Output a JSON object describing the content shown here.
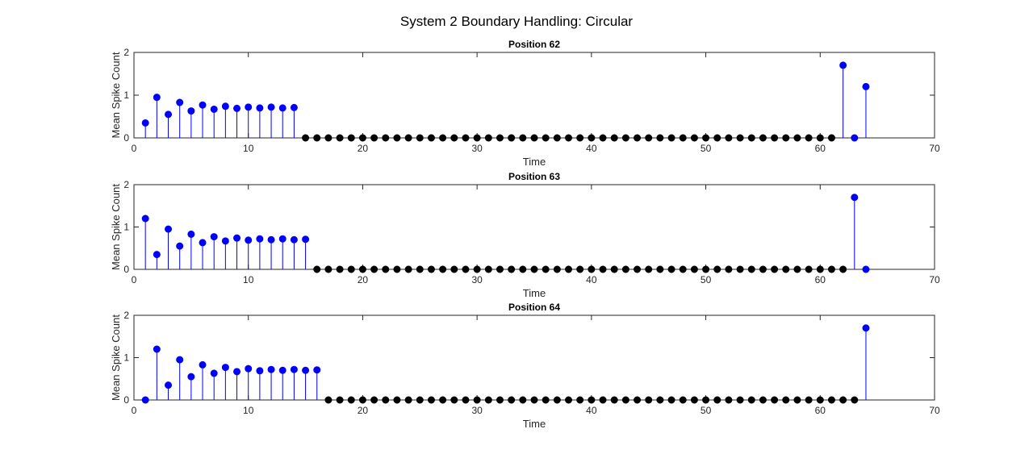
{
  "figure": {
    "title": "System 2 Boundary Handling: Circular"
  },
  "colors": {
    "active": "#0000ff",
    "inactive": "#000000",
    "axis": "#262626",
    "background": "#ffffff"
  },
  "chart_data": [
    {
      "type": "stem",
      "title": "Position 62",
      "xlabel": "Time",
      "ylabel": "Mean Spike Count",
      "xlim": [
        0,
        70
      ],
      "ylim": [
        0,
        2
      ],
      "xticks": [
        0,
        10,
        20,
        30,
        40,
        50,
        60,
        70
      ],
      "yticks": [
        0,
        1,
        2
      ],
      "grid": false,
      "x": [
        1,
        2,
        3,
        4,
        5,
        6,
        7,
        8,
        9,
        10,
        11,
        12,
        13,
        14,
        15,
        16,
        17,
        18,
        19,
        20,
        21,
        22,
        23,
        24,
        25,
        26,
        27,
        28,
        29,
        30,
        31,
        32,
        33,
        34,
        35,
        36,
        37,
        38,
        39,
        40,
        41,
        42,
        43,
        44,
        45,
        46,
        47,
        48,
        49,
        50,
        51,
        52,
        53,
        54,
        55,
        56,
        57,
        58,
        59,
        60,
        61,
        62,
        63,
        64
      ],
      "y": [
        0.35,
        0.95,
        0.55,
        0.83,
        0.63,
        0.77,
        0.67,
        0.74,
        0.69,
        0.72,
        0.7,
        0.72,
        0.7,
        0.71,
        0,
        0,
        0,
        0,
        0,
        0,
        0,
        0,
        0,
        0,
        0,
        0,
        0,
        0,
        0,
        0,
        0,
        0,
        0,
        0,
        0,
        0,
        0,
        0,
        0,
        0,
        0,
        0,
        0,
        0,
        0,
        0,
        0,
        0,
        0,
        0,
        0,
        0,
        0,
        0,
        0,
        0,
        0,
        0,
        0,
        0,
        0,
        1.7,
        0,
        1.2
      ],
      "active_x": [
        1,
        2,
        3,
        4,
        5,
        6,
        7,
        8,
        9,
        10,
        11,
        12,
        13,
        14,
        62,
        63,
        64
      ]
    },
    {
      "type": "stem",
      "title": "Position 63",
      "xlabel": "Time",
      "ylabel": "Mean Spike Count",
      "xlim": [
        0,
        70
      ],
      "ylim": [
        0,
        2
      ],
      "xticks": [
        0,
        10,
        20,
        30,
        40,
        50,
        60,
        70
      ],
      "yticks": [
        0,
        1,
        2
      ],
      "grid": false,
      "x": [
        1,
        2,
        3,
        4,
        5,
        6,
        7,
        8,
        9,
        10,
        11,
        12,
        13,
        14,
        15,
        16,
        17,
        18,
        19,
        20,
        21,
        22,
        23,
        24,
        25,
        26,
        27,
        28,
        29,
        30,
        31,
        32,
        33,
        34,
        35,
        36,
        37,
        38,
        39,
        40,
        41,
        42,
        43,
        44,
        45,
        46,
        47,
        48,
        49,
        50,
        51,
        52,
        53,
        54,
        55,
        56,
        57,
        58,
        59,
        60,
        61,
        62,
        63,
        64
      ],
      "y": [
        1.2,
        0.35,
        0.95,
        0.55,
        0.83,
        0.63,
        0.77,
        0.67,
        0.74,
        0.69,
        0.72,
        0.7,
        0.72,
        0.7,
        0.71,
        0,
        0,
        0,
        0,
        0,
        0,
        0,
        0,
        0,
        0,
        0,
        0,
        0,
        0,
        0,
        0,
        0,
        0,
        0,
        0,
        0,
        0,
        0,
        0,
        0,
        0,
        0,
        0,
        0,
        0,
        0,
        0,
        0,
        0,
        0,
        0,
        0,
        0,
        0,
        0,
        0,
        0,
        0,
        0,
        0,
        0,
        0,
        1.7,
        0
      ],
      "active_x": [
        1,
        2,
        3,
        4,
        5,
        6,
        7,
        8,
        9,
        10,
        11,
        12,
        13,
        14,
        15,
        63,
        64
      ]
    },
    {
      "type": "stem",
      "title": "Position 64",
      "xlabel": "Time",
      "ylabel": "Mean Spike Count",
      "xlim": [
        0,
        70
      ],
      "ylim": [
        0,
        2
      ],
      "xticks": [
        0,
        10,
        20,
        30,
        40,
        50,
        60,
        70
      ],
      "yticks": [
        0,
        1,
        2
      ],
      "grid": false,
      "x": [
        1,
        2,
        3,
        4,
        5,
        6,
        7,
        8,
        9,
        10,
        11,
        12,
        13,
        14,
        15,
        16,
        17,
        18,
        19,
        20,
        21,
        22,
        23,
        24,
        25,
        26,
        27,
        28,
        29,
        30,
        31,
        32,
        33,
        34,
        35,
        36,
        37,
        38,
        39,
        40,
        41,
        42,
        43,
        44,
        45,
        46,
        47,
        48,
        49,
        50,
        51,
        52,
        53,
        54,
        55,
        56,
        57,
        58,
        59,
        60,
        61,
        62,
        63,
        64
      ],
      "y": [
        0,
        1.2,
        0.35,
        0.95,
        0.55,
        0.83,
        0.63,
        0.77,
        0.67,
        0.74,
        0.69,
        0.72,
        0.7,
        0.72,
        0.7,
        0.71,
        0,
        0,
        0,
        0,
        0,
        0,
        0,
        0,
        0,
        0,
        0,
        0,
        0,
        0,
        0,
        0,
        0,
        0,
        0,
        0,
        0,
        0,
        0,
        0,
        0,
        0,
        0,
        0,
        0,
        0,
        0,
        0,
        0,
        0,
        0,
        0,
        0,
        0,
        0,
        0,
        0,
        0,
        0,
        0,
        0,
        0,
        0,
        1.7
      ],
      "active_x": [
        1,
        2,
        3,
        4,
        5,
        6,
        7,
        8,
        9,
        10,
        11,
        12,
        13,
        14,
        15,
        16,
        64
      ]
    }
  ]
}
